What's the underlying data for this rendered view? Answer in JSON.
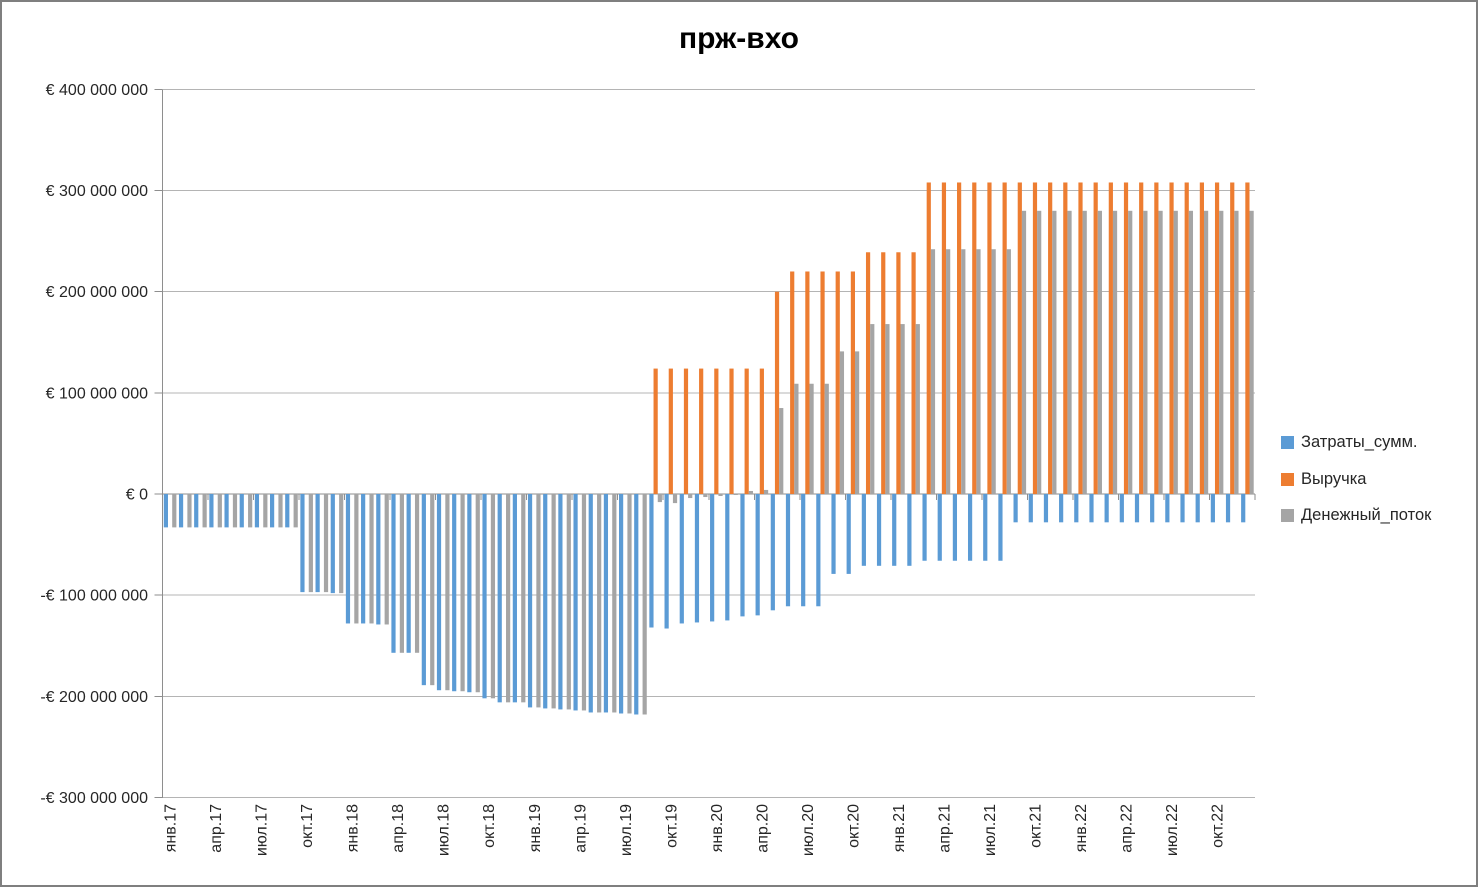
{
  "chart_data": {
    "type": "bar",
    "title": "прж-вхо",
    "currency": "€",
    "grid": true,
    "legend_position": "right",
    "y_axis": {
      "min_eur": -300000000,
      "max_eur": 400000000,
      "step_eur": 100000000,
      "tick_labels": [
        "€ 400 000 000",
        "€ 300 000 000",
        "€ 200 000 000",
        "€ 100 000 000",
        "€ 0",
        "-€ 100 000 000",
        "-€ 200 000 000",
        "-€ 300 000 000"
      ]
    },
    "x_axis": {
      "n_categories": 72,
      "first_month": "янв.17",
      "last_month": "дек.22",
      "label_every_n_months": 3,
      "tick_labels": [
        "янв.17",
        "апр.17",
        "июл.17",
        "окт.17",
        "янв.18",
        "апр.18",
        "июл.18",
        "окт.18",
        "янв.19",
        "апр.19",
        "июл.19",
        "окт.19",
        "янв.20",
        "апр.20",
        "июл.20",
        "окт.20",
        "янв.21",
        "апр.21",
        "июл.21",
        "окт.21",
        "янв.22",
        "апр.22",
        "июл.22",
        "окт.22"
      ]
    },
    "series": [
      {
        "name": "Затраты_сумм.",
        "color": "#5B9BD5",
        "values_eur_millions": [
          -33,
          -33,
          -33,
          -33,
          -33,
          -33,
          -33,
          -33,
          -33,
          -97,
          -97,
          -98,
          -128,
          -128,
          -129,
          -157,
          -157,
          -189,
          -194,
          -195,
          -196,
          -202,
          -206,
          -206,
          -211,
          -212,
          -213,
          -214,
          -216,
          -216,
          -217,
          -218,
          -132,
          -133,
          -128,
          -127,
          -126,
          -125,
          -121,
          -120,
          -115,
          -111,
          -111,
          -111,
          -79,
          -79,
          -71,
          -71,
          -71,
          -71,
          -66,
          -66,
          -66,
          -66,
          -66,
          -66,
          -28,
          -28,
          -28,
          -28,
          -28,
          -28,
          -28,
          -28,
          -28,
          -28,
          -28,
          -28,
          -28,
          -28,
          -28,
          -28
        ]
      },
      {
        "name": "Выручка",
        "color": "#ED7D31",
        "values_eur_millions": [
          0,
          0,
          0,
          0,
          0,
          0,
          0,
          0,
          0,
          0,
          0,
          0,
          0,
          0,
          0,
          0,
          0,
          0,
          0,
          0,
          0,
          0,
          0,
          0,
          0,
          0,
          0,
          0,
          0,
          0,
          0,
          0,
          124,
          124,
          124,
          124,
          124,
          124,
          124,
          124,
          200,
          220,
          220,
          220,
          220,
          220,
          239,
          239,
          239,
          239,
          308,
          308,
          308,
          308,
          308,
          308,
          308,
          308,
          308,
          308,
          308,
          308,
          308,
          308,
          308,
          308,
          308,
          308,
          308,
          308,
          308,
          308
        ]
      },
      {
        "name": "Денежный_поток",
        "color": "#A5A5A5",
        "values_eur_millions": [
          -33,
          -33,
          -33,
          -33,
          -33,
          -33,
          -33,
          -33,
          -33,
          -97,
          -97,
          -98,
          -128,
          -128,
          -129,
          -157,
          -157,
          -189,
          -194,
          -195,
          -196,
          -202,
          -206,
          -206,
          -211,
          -212,
          -213,
          -214,
          -216,
          -216,
          -217,
          -218,
          -8,
          -9,
          -4,
          -3,
          -2,
          -1,
          3,
          4,
          85,
          109,
          109,
          109,
          141,
          141,
          168,
          168,
          168,
          168,
          242,
          242,
          242,
          242,
          242,
          242,
          280,
          280,
          280,
          280,
          280,
          280,
          280,
          280,
          280,
          280,
          280,
          280,
          280,
          280,
          280,
          280
        ]
      }
    ]
  }
}
